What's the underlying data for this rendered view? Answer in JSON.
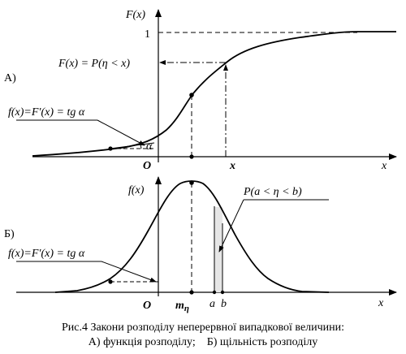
{
  "top_panel": {
    "panel_label": "А)",
    "y_axis_label": "F(x)",
    "one_tick": "1",
    "definition": "F(x) = P(η < x)",
    "derivative": "f(x)=F′(x) = tg α",
    "alpha": "α",
    "origin": "O",
    "x_point": "x",
    "x_axis_label": "x"
  },
  "bottom_panel": {
    "panel_label": "Б)",
    "y_axis_label": "f(x)",
    "probability": "P(a < η < b)",
    "derivative": "f(x)=F′(x) = tg α",
    "origin": "O",
    "mode": "m",
    "mode_subscript": "η",
    "a_label": "a",
    "b_label": "b",
    "x_axis_label": "x"
  },
  "caption": {
    "line1": "Рис.4 Закони розподілу неперервної випадкової величини:",
    "line2": "А) функція розподілу;    Б) щільність розподілу"
  },
  "colors": {
    "ink": "#000000",
    "background": "#ffffff"
  }
}
